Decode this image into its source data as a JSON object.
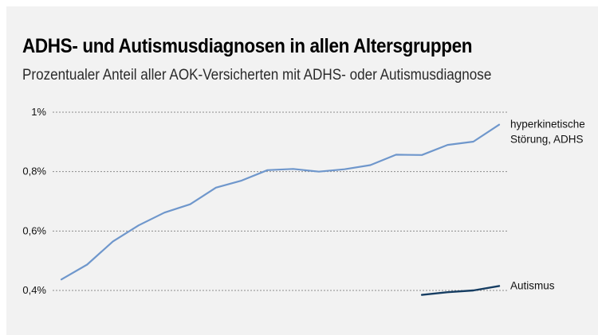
{
  "header": {
    "title": "ADHS- und Autismusdiagnosen in allen Altersgruppen",
    "subtitle": "Prozentualer Anteil aller AOK-Versicherten mit ADHS- oder Autismusdiagnose"
  },
  "colors": {
    "adhs": "#6f97cc",
    "autismus": "#163d62",
    "gridline": "#8c8c8c"
  },
  "chart_data": {
    "type": "line",
    "title": "ADHS- und Autismusdiagnosen in allen Altersgruppen",
    "subtitle": "Prozentualer Anteil aller AOK-Versicherten mit ADHS- oder Autismusdiagnose",
    "xlabel": "",
    "ylabel": "",
    "ylim": [
      0.4,
      1.0
    ],
    "y_ticks": [
      {
        "value": 1.0,
        "label": "1%"
      },
      {
        "value": 0.8,
        "label": "0,8%"
      },
      {
        "value": 0.6,
        "label": "0,6%"
      },
      {
        "value": 0.4,
        "label": "0,4%"
      }
    ],
    "grid": true,
    "series": [
      {
        "name": "hyperkinetische Störung, ADHS",
        "label_lines": [
          "hyperkinetische",
          "Störung, ADHS"
        ],
        "values": [
          0.437,
          0.487,
          0.565,
          0.619,
          0.662,
          0.69,
          0.746,
          0.77,
          0.805,
          0.809,
          0.8,
          0.808,
          0.822,
          0.857,
          0.856,
          0.89,
          0.901,
          0.958
        ]
      },
      {
        "name": "Autismus",
        "label_lines": [
          "Autismus"
        ],
        "values": [
          null,
          null,
          null,
          null,
          null,
          null,
          null,
          null,
          null,
          null,
          null,
          null,
          null,
          null,
          0.385,
          0.394,
          0.4,
          0.415
        ]
      }
    ]
  }
}
